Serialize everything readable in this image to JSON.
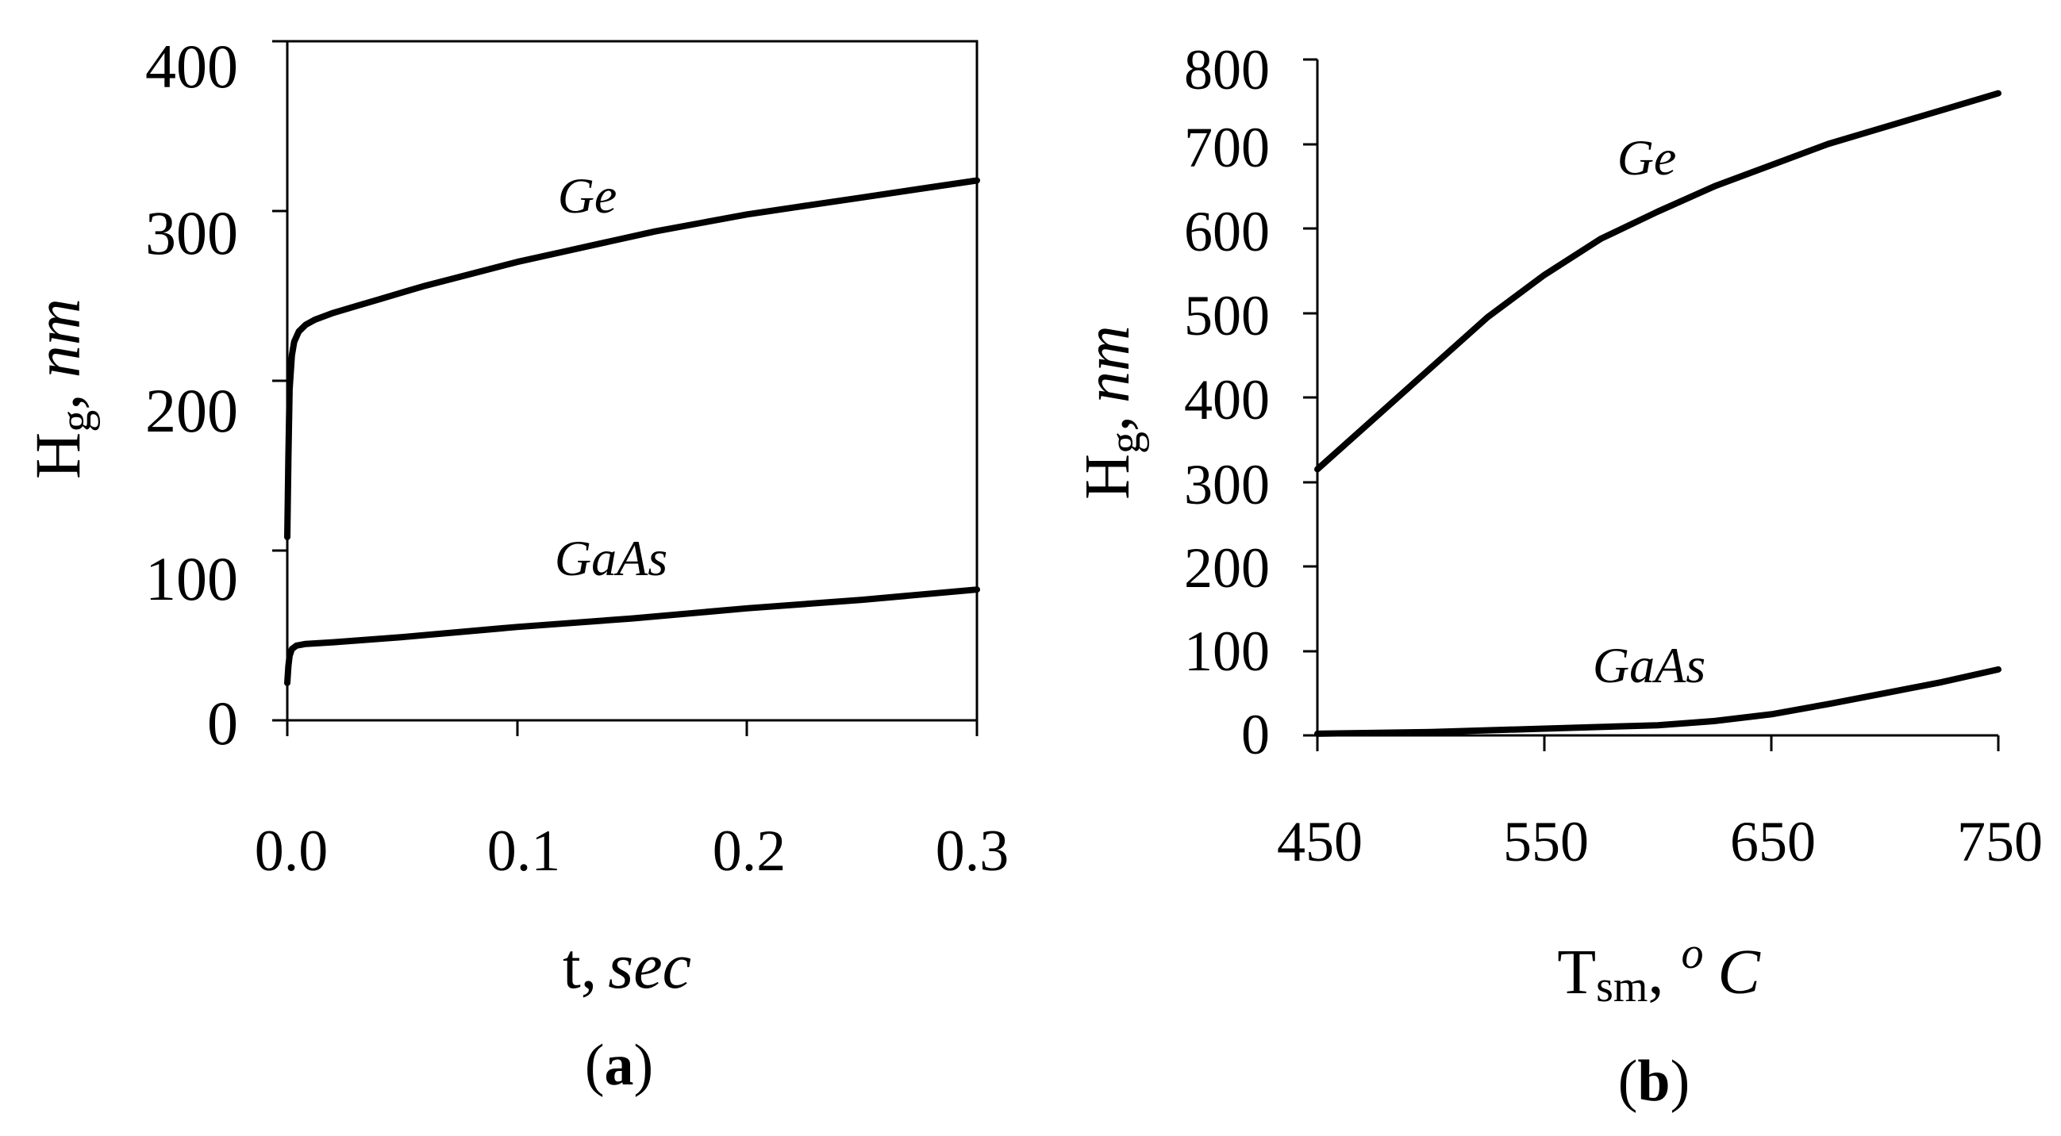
{
  "chart_data": [
    {
      "type": "line",
      "panel": "a",
      "panel_label": "a",
      "xlabel": "t,",
      "xlabel_unit": "sec",
      "ylabel": "H",
      "ylabel_sub": "g",
      "ylabel_sep": ",",
      "ylabel_unit": "nm",
      "xlim": [
        0,
        0.3
      ],
      "ylim": [
        0,
        400
      ],
      "x_ticks": [
        0.0,
        0.1,
        0.2,
        0.3
      ],
      "x_tick_labels": [
        "0.0",
        "0.1",
        "0.2",
        "0.3"
      ],
      "y_ticks": [
        0,
        100,
        200,
        300,
        400
      ],
      "y_tick_labels": [
        "0",
        "100",
        "200",
        "300",
        "400"
      ],
      "series": [
        {
          "name": "Ge",
          "x": [
            0.0,
            0.0005,
            0.001,
            0.002,
            0.003,
            0.005,
            0.008,
            0.012,
            0.02,
            0.03,
            0.04,
            0.05,
            0.06,
            0.08,
            0.1,
            0.12,
            0.14,
            0.16,
            0.18,
            0.2,
            0.22,
            0.25,
            0.28,
            0.3
          ],
          "values": [
            108,
            155,
            195,
            215,
            223,
            229,
            233,
            236,
            240,
            244,
            248,
            252,
            256,
            263,
            270,
            276,
            282,
            288,
            293,
            298,
            302,
            308,
            314,
            318
          ]
        },
        {
          "name": "GaAs",
          "x": [
            0.0,
            0.0005,
            0.001,
            0.002,
            0.004,
            0.008,
            0.02,
            0.05,
            0.1,
            0.15,
            0.2,
            0.25,
            0.3
          ],
          "values": [
            22,
            32,
            38,
            42,
            44,
            45,
            46,
            49,
            55,
            60,
            66,
            71,
            77
          ]
        }
      ],
      "series_labels": [
        "Ge",
        "GaAs"
      ]
    },
    {
      "type": "line",
      "panel": "b",
      "panel_label": "b",
      "xlabel": "T",
      "xlabel_sub": "sm",
      "xlabel_sep": ",",
      "xlabel_sup": "o",
      "xlabel_unit": "C",
      "ylabel": "H",
      "ylabel_sub": "g",
      "ylabel_sep": ",",
      "ylabel_unit": "nm",
      "xlim": [
        450,
        750
      ],
      "ylim": [
        0,
        800
      ],
      "x_ticks": [
        450,
        550,
        650,
        750
      ],
      "x_tick_labels": [
        "450",
        "550",
        "650",
        "750"
      ],
      "y_ticks": [
        0,
        100,
        200,
        300,
        400,
        500,
        600,
        700,
        800
      ],
      "y_tick_labels": [
        "0",
        "100",
        "200",
        "300",
        "400",
        "500",
        "600",
        "700",
        "800"
      ],
      "series": [
        {
          "name": "Ge",
          "x": [
            450,
            475,
            500,
            525,
            550,
            575,
            600,
            625,
            650,
            675,
            700,
            725,
            750
          ],
          "values": [
            315,
            375,
            435,
            495,
            545,
            588,
            620,
            650,
            675,
            700,
            720,
            740,
            760
          ]
        },
        {
          "name": "GaAs",
          "x": [
            450,
            500,
            550,
            600,
            625,
            650,
            675,
            700,
            725,
            750
          ],
          "values": [
            2,
            4,
            8,
            12,
            17,
            25,
            37,
            50,
            63,
            78
          ]
        }
      ],
      "series_labels": [
        "Ge",
        "GaAs"
      ]
    }
  ]
}
